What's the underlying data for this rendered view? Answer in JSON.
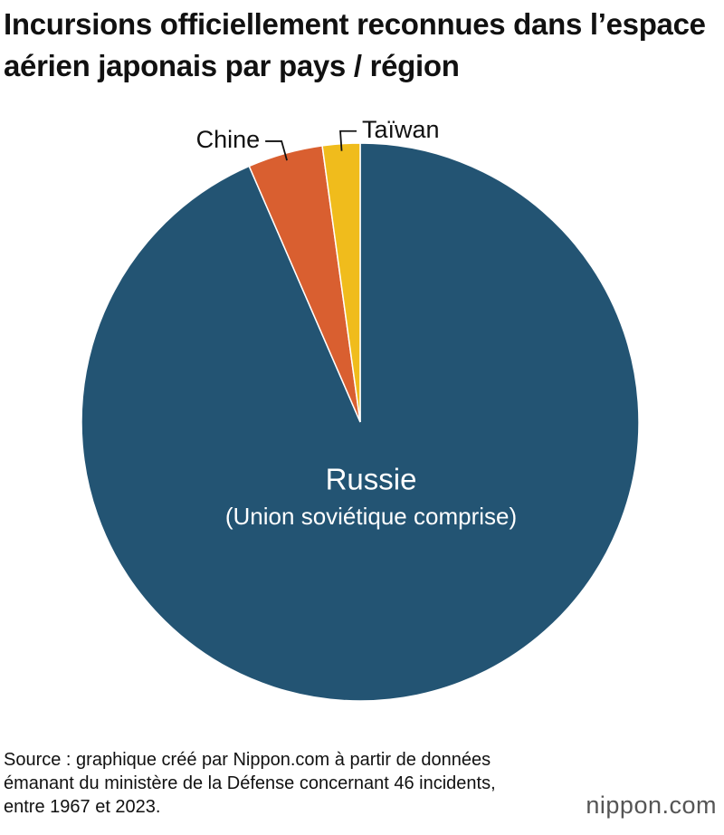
{
  "chart_data": {
    "type": "pie",
    "title": "Incursions officiellement reconnues dans l’espace aérien japonais par pays / région",
    "categories": [
      "Russie",
      "Chine",
      "Taïwan"
    ],
    "values": [
      43,
      2,
      1
    ],
    "colors": [
      "#235473",
      "#d95f30",
      "#f0bc1c"
    ],
    "annotation": "(Union soviétique comprise)",
    "source": "Source : graphique créé par Nippon.com à partir de données émanant du ministère de la Défense concernant 46 incidents, entre 1967 et 2023.",
    "logo": "nippon.com"
  }
}
